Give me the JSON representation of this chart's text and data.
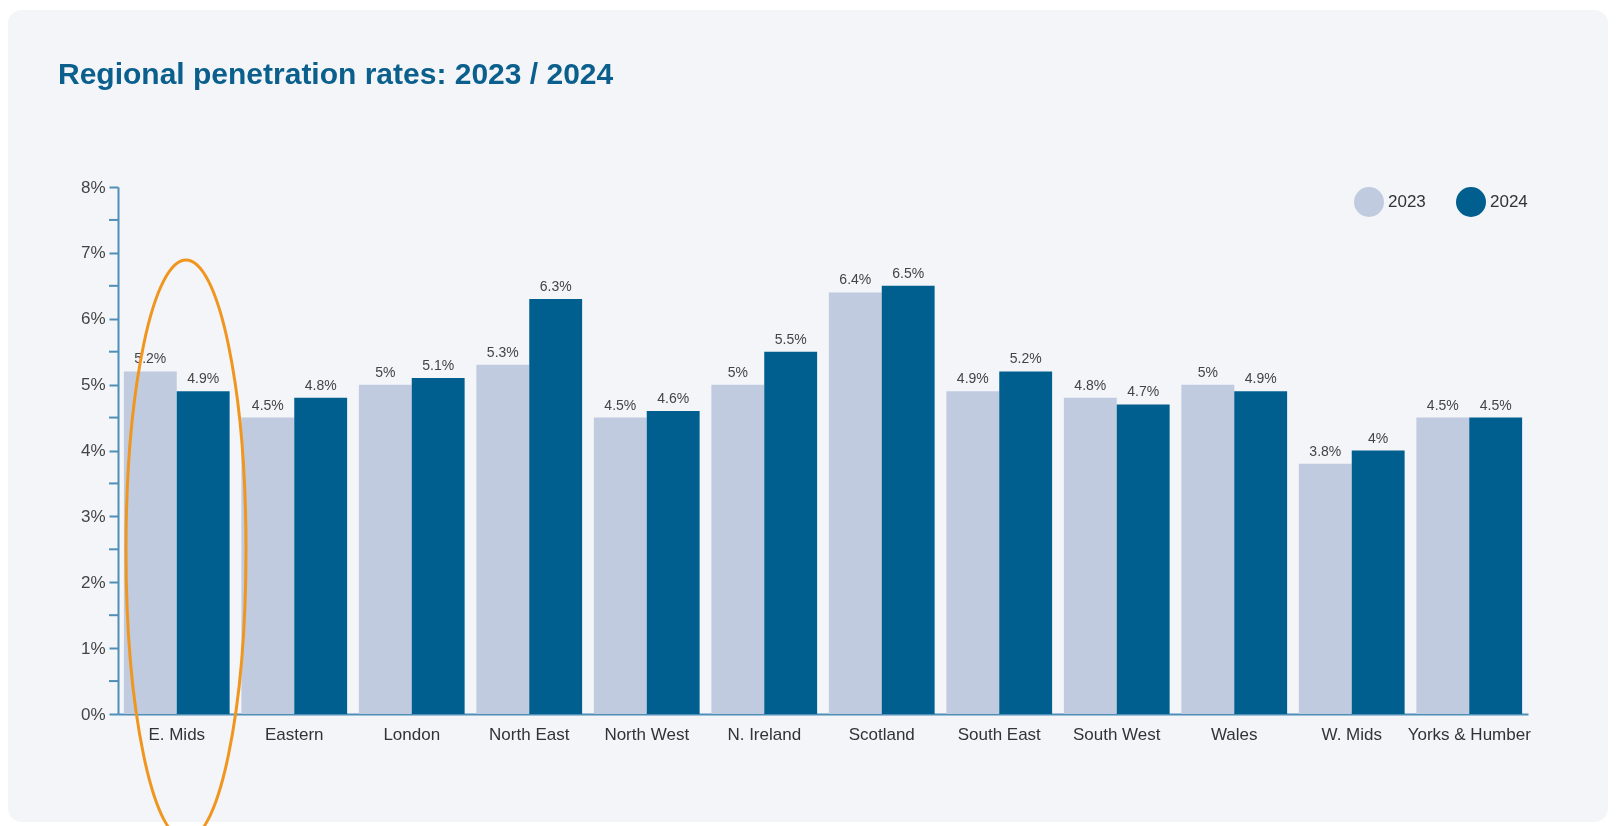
{
  "chart_data": {
    "type": "bar",
    "title": "Regional penetration rates: 2023 / 2024",
    "categories": [
      "E. Mids",
      "Eastern",
      "London",
      "North East",
      "North West",
      "N. Ireland",
      "Scotland",
      "South East",
      "South West",
      "Wales",
      "W. Mids",
      "Yorks & Humber"
    ],
    "series": [
      {
        "name": "2023",
        "color": "#c0cbdf",
        "values": [
          5.2,
          4.5,
          5,
          5.3,
          4.5,
          5,
          6.4,
          4.9,
          4.8,
          5,
          3.8,
          4.5
        ],
        "value_labels": [
          "5.2%",
          "4.5%",
          "5%",
          "5.3%",
          "4.5%",
          "5%",
          "6.4%",
          "4.9%",
          "4.8%",
          "5%",
          "3.8%",
          "4.5%"
        ]
      },
      {
        "name": "2024",
        "color": "#005f8f",
        "values": [
          4.9,
          4.8,
          5.1,
          6.3,
          4.6,
          5.5,
          6.5,
          5.2,
          4.7,
          4.9,
          4,
          4.5
        ],
        "value_labels": [
          "4.9%",
          "4.8%",
          "5.1%",
          "6.3%",
          "4.6%",
          "5.5%",
          "6.5%",
          "5.2%",
          "4.7%",
          "4.9%",
          "4%",
          "4.5%"
        ]
      }
    ],
    "ylim": [
      0,
      8
    ],
    "yticks": [
      {
        "value": 0,
        "label": "0%"
      },
      {
        "value": 0.5,
        "label": null
      },
      {
        "value": 1,
        "label": "1%"
      },
      {
        "value": 1.5,
        "label": null
      },
      {
        "value": 2,
        "label": "2%"
      },
      {
        "value": 2.5,
        "label": null
      },
      {
        "value": 3,
        "label": "3%"
      },
      {
        "value": 3.5,
        "label": null
      },
      {
        "value": 4,
        "label": "4%"
      },
      {
        "value": 4.5,
        "label": null
      },
      {
        "value": 5,
        "label": "5%"
      },
      {
        "value": 5.5,
        "label": null
      },
      {
        "value": 6,
        "label": "6%"
      },
      {
        "value": 6.5,
        "label": null
      },
      {
        "value": 7,
        "label": "7%"
      },
      {
        "value": 7.5,
        "label": null
      },
      {
        "value": 8,
        "label": "8%"
      }
    ],
    "grid": false,
    "legend": "top right"
  }
}
